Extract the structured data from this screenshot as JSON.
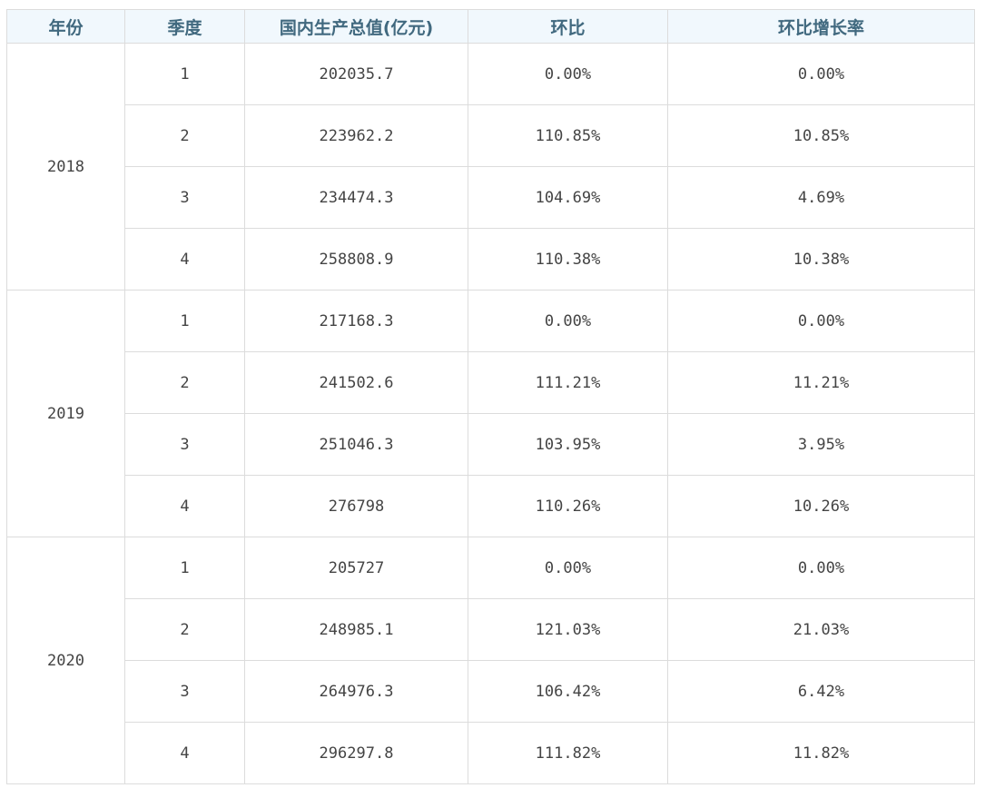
{
  "headers": [
    "年份",
    "季度",
    "国内生产总值(亿元)",
    "环比",
    "环比增长率"
  ],
  "groups": [
    {
      "year": "2018",
      "rows": [
        [
          "1",
          "202035.7",
          "0.00%",
          "0.00%"
        ],
        [
          "2",
          "223962.2",
          "110.85%",
          "10.85%"
        ],
        [
          "3",
          "234474.3",
          "104.69%",
          "4.69%"
        ],
        [
          "4",
          "258808.9",
          "110.38%",
          "10.38%"
        ]
      ]
    },
    {
      "year": "2019",
      "rows": [
        [
          "1",
          "217168.3",
          "0.00%",
          "0.00%"
        ],
        [
          "2",
          "241502.6",
          "111.21%",
          "11.21%"
        ],
        [
          "3",
          "251046.3",
          "103.95%",
          "3.95%"
        ],
        [
          "4",
          "276798",
          "110.26%",
          "10.26%"
        ]
      ]
    },
    {
      "year": "2020",
      "rows": [
        [
          "1",
          "205727",
          "0.00%",
          "0.00%"
        ],
        [
          "2",
          "248985.1",
          "121.03%",
          "21.03%"
        ],
        [
          "3",
          "264976.3",
          "106.42%",
          "6.42%"
        ],
        [
          "4",
          "296297.8",
          "111.82%",
          "11.82%"
        ]
      ]
    }
  ]
}
